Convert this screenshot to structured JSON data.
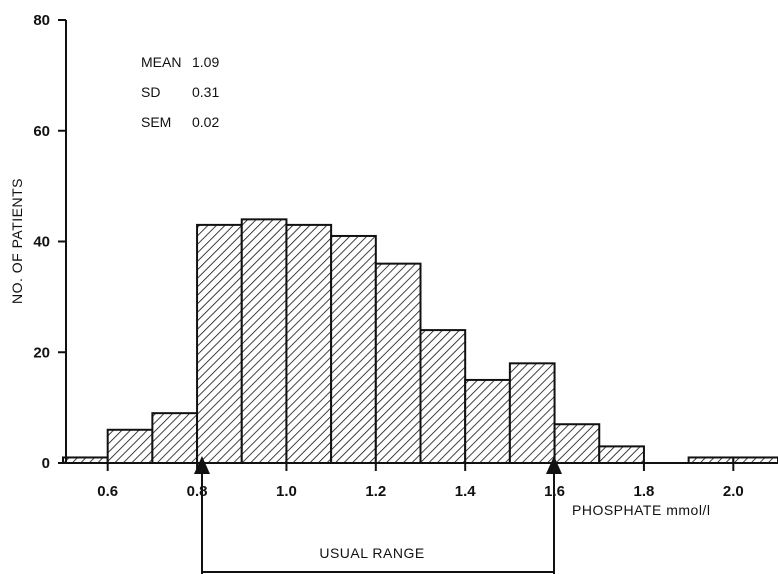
{
  "chart_data": {
    "type": "bar",
    "title": "",
    "xlabel": "PHOSPHATE mmol/l",
    "ylabel": "NO. OF PATIENTS",
    "xlim": [
      0.5,
      2.1
    ],
    "ylim": [
      0,
      80
    ],
    "bin_width": 0.1,
    "x_ticks": [
      "0.6",
      "0.8",
      "1.0",
      "1.2",
      "1.4",
      "1.6",
      "1.8",
      "2.0"
    ],
    "y_ticks": [
      "0",
      "20",
      "40",
      "60",
      "80"
    ],
    "bins": [
      {
        "start": 0.5,
        "end": 0.6,
        "count": 1
      },
      {
        "start": 0.6,
        "end": 0.7,
        "count": 6
      },
      {
        "start": 0.7,
        "end": 0.8,
        "count": 9
      },
      {
        "start": 0.8,
        "end": 0.9,
        "count": 43
      },
      {
        "start": 0.9,
        "end": 1.0,
        "count": 44
      },
      {
        "start": 1.0,
        "end": 1.1,
        "count": 43
      },
      {
        "start": 1.1,
        "end": 1.2,
        "count": 41
      },
      {
        "start": 1.2,
        "end": 1.3,
        "count": 36
      },
      {
        "start": 1.3,
        "end": 1.4,
        "count": 24
      },
      {
        "start": 1.4,
        "end": 1.5,
        "count": 15
      },
      {
        "start": 1.5,
        "end": 1.6,
        "count": 18
      },
      {
        "start": 1.6,
        "end": 1.7,
        "count": 7
      },
      {
        "start": 1.7,
        "end": 1.8,
        "count": 3
      },
      {
        "start": 1.9,
        "end": 2.0,
        "count": 1
      },
      {
        "start": 2.0,
        "end": 2.1,
        "count": 1
      }
    ],
    "stats": [
      {
        "label": "MEAN",
        "value": "1.09"
      },
      {
        "label": "SD",
        "value": "0.31"
      },
      {
        "label": "SEM",
        "value": "0.02"
      }
    ],
    "usual_range": {
      "label": "USUAL RANGE",
      "from": 0.8,
      "to": 1.6
    },
    "grid": false,
    "bar_fill": "diagonal-hatch",
    "colors": {
      "ink": "#111111",
      "background": "#ffffff"
    }
  }
}
